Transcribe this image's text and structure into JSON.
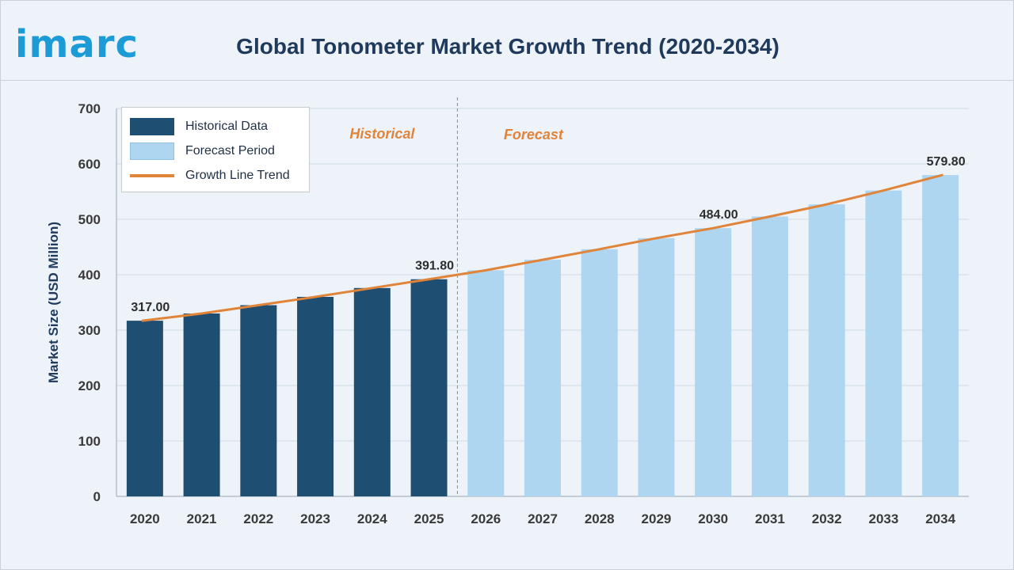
{
  "logo": {
    "text": "imarc"
  },
  "title": "Global Tonometer Market Growth Trend (2020-2034)",
  "legend": {
    "items": [
      {
        "label": "Historical Data",
        "color": "#1f4e73"
      },
      {
        "label": "Forecast Period",
        "color": "#aed6f0"
      },
      {
        "label": "Growth Line Trend",
        "color": "#e0843a"
      }
    ]
  },
  "annotations": {
    "historical": "Historical",
    "forecast": "Forecast"
  },
  "chart_data": {
    "type": "bar",
    "title": "Global Tonometer Market Growth Trend (2020-2034)",
    "xlabel": "",
    "ylabel": "Market Size (USD Million)",
    "ylim": [
      0,
      700
    ],
    "yticks": [
      0,
      100,
      200,
      300,
      400,
      500,
      600,
      700
    ],
    "grid": true,
    "legend_position": "top-left",
    "categories": [
      "2020",
      "2021",
      "2022",
      "2023",
      "2024",
      "2025",
      "2026",
      "2027",
      "2028",
      "2029",
      "2030",
      "2031",
      "2032",
      "2033",
      "2034"
    ],
    "series": [
      {
        "name": "Historical Data",
        "type": "bar",
        "color": "#1f4e73",
        "values": [
          317.0,
          330.0,
          345.0,
          360.0,
          376.0,
          391.8,
          null,
          null,
          null,
          null,
          null,
          null,
          null,
          null,
          null
        ]
      },
      {
        "name": "Forecast Period",
        "type": "bar",
        "color": "#aed6f0",
        "values": [
          null,
          null,
          null,
          null,
          null,
          null,
          408.0,
          427.0,
          446.0,
          466.0,
          484.0,
          505.0,
          527.0,
          552.0,
          579.8
        ]
      },
      {
        "name": "Growth Line Trend",
        "type": "line",
        "color": "#e0843a",
        "values": [
          317.0,
          330.0,
          345.0,
          360.0,
          376.0,
          391.8,
          408.0,
          427.0,
          446.0,
          466.0,
          484.0,
          505.0,
          527.0,
          552.0,
          579.8
        ]
      }
    ],
    "data_labels": [
      {
        "category": "2020",
        "text": "317.00"
      },
      {
        "category": "2025",
        "text": "391.80"
      },
      {
        "category": "2030",
        "text": "484.00"
      },
      {
        "category": "2034",
        "text": "579.80"
      }
    ]
  }
}
